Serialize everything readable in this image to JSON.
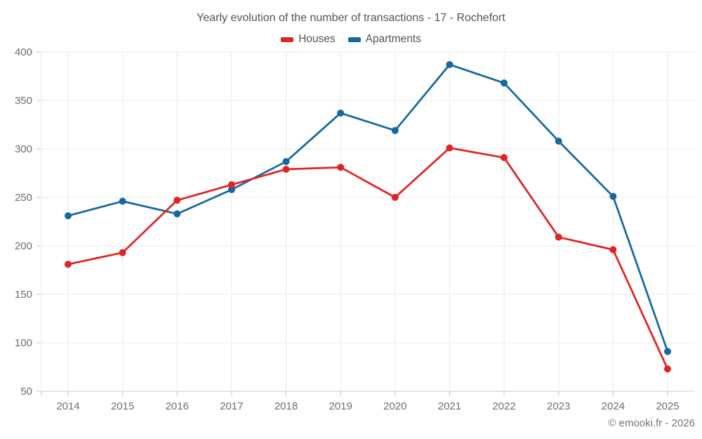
{
  "header": {
    "title": "Yearly evolution of the number of transactions - 17 - Rochefort"
  },
  "legend": [
    {
      "label": "Houses",
      "color": "#e02424"
    },
    {
      "label": "Apartments",
      "color": "#1569a0"
    }
  ],
  "footer": {
    "watermark": "© emooki.fr - 2026"
  },
  "colors": {
    "houses": "#e02424",
    "apartments": "#1569a0",
    "gridline": "#e8e8e8",
    "axis_line": "#cfcfcf",
    "tick": "#c9c9c9",
    "axis_text": "#6d6d6d",
    "title_text": "#545454",
    "watermark_text": "#757575"
  },
  "chart_data": {
    "type": "line",
    "title": "Yearly evolution of the number of transactions - 17 - Rochefort",
    "xlabel": "",
    "ylabel": "",
    "x": [
      "2014",
      "2015",
      "2016",
      "2017",
      "2018",
      "2019",
      "2020",
      "2021",
      "2022",
      "2023",
      "2024",
      "2025"
    ],
    "series": [
      {
        "name": "Houses",
        "color": "#e02424",
        "values": [
          181,
          193,
          247,
          263,
          279,
          281,
          250,
          301,
          291,
          209,
          196,
          73
        ]
      },
      {
        "name": "Apartments",
        "color": "#1569a0",
        "values": [
          231,
          246,
          233,
          258,
          287,
          337,
          319,
          387,
          368,
          308,
          251,
          91
        ]
      }
    ],
    "ylim": [
      50,
      400
    ],
    "ytick_step": 50,
    "yticks": [
      50,
      100,
      150,
      200,
      250,
      300,
      350,
      400
    ],
    "grid": true,
    "legend_position": "top",
    "marker": "circle",
    "watermark": "© emooki.fr - 2026"
  }
}
